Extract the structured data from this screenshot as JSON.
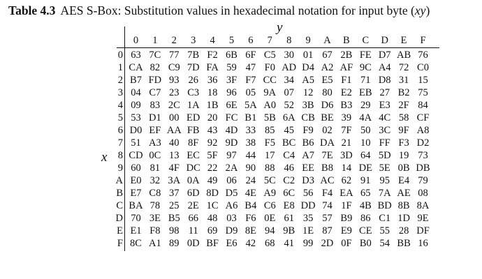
{
  "caption": {
    "number": "Table 4.3",
    "text": "AES S-Box: Substitution values in hexadecimal notation for input byte (",
    "var": "xy",
    "close": ")"
  },
  "column_variable": "y",
  "row_variable": "x",
  "column_headers": [
    "0",
    "1",
    "2",
    "3",
    "4",
    "5",
    "6",
    "7",
    "8",
    "9",
    "A",
    "B",
    "C",
    "D",
    "E",
    "F"
  ],
  "rows": [
    {
      "label": "0",
      "cells": [
        "63",
        "7C",
        "77",
        "7B",
        "F2",
        "6B",
        "6F",
        "C5",
        "30",
        "01",
        "67",
        "2B",
        "FE",
        "D7",
        "AB",
        "76"
      ]
    },
    {
      "label": "1",
      "cells": [
        "CA",
        "82",
        "C9",
        "7D",
        "FA",
        "59",
        "47",
        "F0",
        "AD",
        "D4",
        "A2",
        "AF",
        "9C",
        "A4",
        "72",
        "C0"
      ]
    },
    {
      "label": "2",
      "cells": [
        "B7",
        "FD",
        "93",
        "26",
        "36",
        "3F",
        "F7",
        "CC",
        "34",
        "A5",
        "E5",
        "F1",
        "71",
        "D8",
        "31",
        "15"
      ]
    },
    {
      "label": "3",
      "cells": [
        "04",
        "C7",
        "23",
        "C3",
        "18",
        "96",
        "05",
        "9A",
        "07",
        "12",
        "80",
        "E2",
        "EB",
        "27",
        "B2",
        "75"
      ]
    },
    {
      "label": "4",
      "cells": [
        "09",
        "83",
        "2C",
        "1A",
        "1B",
        "6E",
        "5A",
        "A0",
        "52",
        "3B",
        "D6",
        "B3",
        "29",
        "E3",
        "2F",
        "84"
      ]
    },
    {
      "label": "5",
      "cells": [
        "53",
        "D1",
        "00",
        "ED",
        "20",
        "FC",
        "B1",
        "5B",
        "6A",
        "CB",
        "BE",
        "39",
        "4A",
        "4C",
        "58",
        "CF"
      ]
    },
    {
      "label": "6",
      "cells": [
        "D0",
        "EF",
        "AA",
        "FB",
        "43",
        "4D",
        "33",
        "85",
        "45",
        "F9",
        "02",
        "7F",
        "50",
        "3C",
        "9F",
        "A8"
      ]
    },
    {
      "label": "7",
      "cells": [
        "51",
        "A3",
        "40",
        "8F",
        "92",
        "9D",
        "38",
        "F5",
        "BC",
        "B6",
        "DA",
        "21",
        "10",
        "FF",
        "F3",
        "D2"
      ]
    },
    {
      "label": "8",
      "cells": [
        "CD",
        "0C",
        "13",
        "EC",
        "5F",
        "97",
        "44",
        "17",
        "C4",
        "A7",
        "7E",
        "3D",
        "64",
        "5D",
        "19",
        "73"
      ]
    },
    {
      "label": "9",
      "cells": [
        "60",
        "81",
        "4F",
        "DC",
        "22",
        "2A",
        "90",
        "88",
        "46",
        "EE",
        "B8",
        "14",
        "DE",
        "5E",
        "0B",
        "DB"
      ]
    },
    {
      "label": "A",
      "cells": [
        "E0",
        "32",
        "3A",
        "0A",
        "49",
        "06",
        "24",
        "5C",
        "C2",
        "D3",
        "AC",
        "62",
        "91",
        "95",
        "E4",
        "79"
      ]
    },
    {
      "label": "B",
      "cells": [
        "E7",
        "C8",
        "37",
        "6D",
        "8D",
        "D5",
        "4E",
        "A9",
        "6C",
        "56",
        "F4",
        "EA",
        "65",
        "7A",
        "AE",
        "08"
      ]
    },
    {
      "label": "C",
      "cells": [
        "BA",
        "78",
        "25",
        "2E",
        "1C",
        "A6",
        "B4",
        "C6",
        "E8",
        "DD",
        "74",
        "1F",
        "4B",
        "BD",
        "8B",
        "8A"
      ]
    },
    {
      "label": "D",
      "cells": [
        "70",
        "3E",
        "B5",
        "66",
        "48",
        "03",
        "F6",
        "0E",
        "61",
        "35",
        "57",
        "B9",
        "86",
        "C1",
        "1D",
        "9E"
      ]
    },
    {
      "label": "E",
      "cells": [
        "E1",
        "F8",
        "98",
        "11",
        "69",
        "D9",
        "8E",
        "94",
        "9B",
        "1E",
        "87",
        "E9",
        "CE",
        "55",
        "28",
        "DF"
      ]
    },
    {
      "label": "F",
      "cells": [
        "8C",
        "A1",
        "89",
        "0D",
        "BF",
        "E6",
        "42",
        "68",
        "41",
        "99",
        "2D",
        "0F",
        "B0",
        "54",
        "BB",
        "16"
      ]
    }
  ]
}
